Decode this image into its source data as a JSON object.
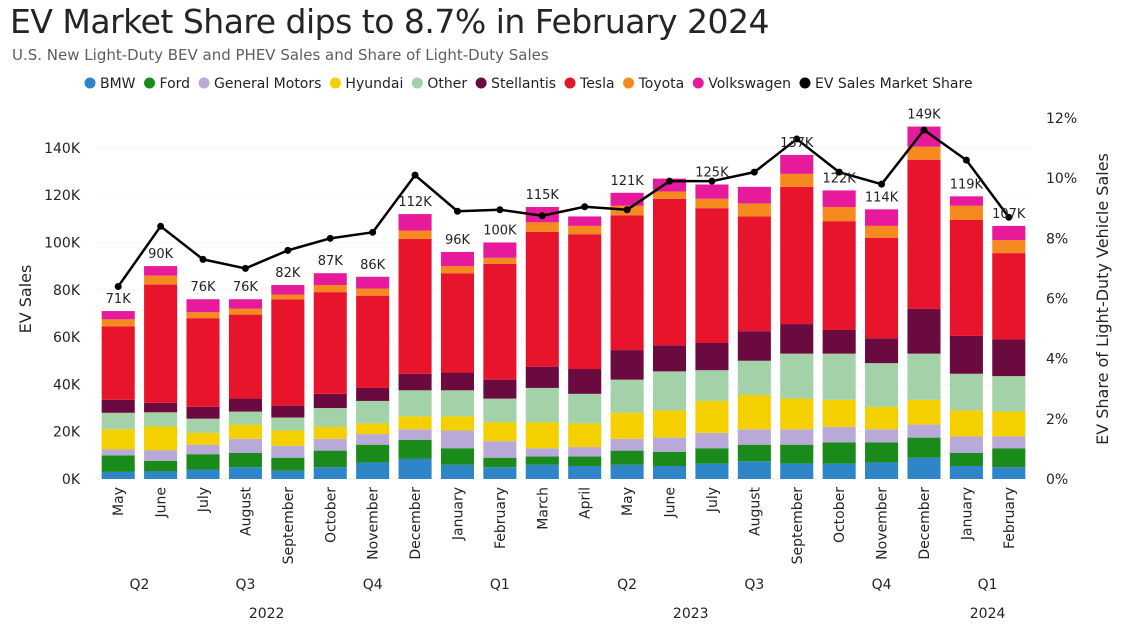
{
  "title": "EV Market Share dips to 8.7% in February 2024",
  "subtitle": "U.S. New Light-Duty BEV and PHEV Sales and Share of Light-Duty Sales",
  "chart_data": {
    "type": "bar",
    "stacked": true,
    "categories": [
      "May",
      "June",
      "July",
      "August",
      "September",
      "October",
      "November",
      "December",
      "January",
      "February",
      "March",
      "April",
      "May",
      "June",
      "July",
      "August",
      "September",
      "October",
      "November",
      "December",
      "January",
      "February"
    ],
    "quarter_groups": [
      {
        "label": "Q2",
        "start": 0,
        "end": 1
      },
      {
        "label": "Q3",
        "start": 2,
        "end": 4
      },
      {
        "label": "Q4",
        "start": 5,
        "end": 7
      },
      {
        "label": "Q1",
        "start": 8,
        "end": 10
      },
      {
        "label": "Q2",
        "start": 11,
        "end": 13
      },
      {
        "label": "Q3",
        "start": 14,
        "end": 16
      },
      {
        "label": "Q4",
        "start": 17,
        "end": 19
      },
      {
        "label": "Q1",
        "start": 20,
        "end": 21
      }
    ],
    "year_groups": [
      {
        "label": "2022",
        "start": 0,
        "end": 7
      },
      {
        "label": "2023",
        "start": 8,
        "end": 19
      },
      {
        "label": "2024",
        "start": 20,
        "end": 21
      }
    ],
    "series": [
      {
        "name": "BMW",
        "color": "#2e86c9",
        "values": [
          3000,
          3200,
          4000,
          5000,
          3500,
          5000,
          7000,
          8500,
          6000,
          5000,
          6000,
          5500,
          6000,
          5500,
          6500,
          7500,
          6500,
          6500,
          7000,
          9000,
          5500,
          5000
        ]
      },
      {
        "name": "Ford",
        "color": "#1a8a1a",
        "values": [
          7000,
          4500,
          6500,
          6000,
          5500,
          7000,
          7500,
          8000,
          7000,
          4000,
          3500,
          4000,
          6000,
          6000,
          6500,
          7000,
          8000,
          9000,
          8500,
          8500,
          5500,
          8000
        ]
      },
      {
        "name": "General Motors",
        "color": "#b8a9d9",
        "values": [
          2500,
          4500,
          4000,
          6000,
          5000,
          5000,
          4500,
          4500,
          7500,
          7000,
          3500,
          4000,
          5000,
          6000,
          6500,
          6500,
          6500,
          6500,
          5500,
          5500,
          7000,
          5000
        ]
      },
      {
        "name": "Hyundai",
        "color": "#f5d000",
        "values": [
          8500,
          10000,
          5000,
          6000,
          6500,
          5000,
          4500,
          5500,
          6000,
          8000,
          11000,
          10000,
          11000,
          11500,
          13500,
          14500,
          13000,
          11500,
          9500,
          10500,
          11000,
          10500
        ]
      },
      {
        "name": "Other",
        "color": "#a3d1a8",
        "values": [
          7000,
          6000,
          6000,
          5500,
          5500,
          8000,
          9500,
          11000,
          11000,
          10000,
          14500,
          12500,
          14000,
          16500,
          13000,
          14500,
          19000,
          19500,
          18500,
          19500,
          15500,
          15000
        ]
      },
      {
        "name": "Stellantis",
        "color": "#6b0a3e",
        "values": [
          5500,
          4000,
          5000,
          5500,
          5000,
          6000,
          5500,
          7000,
          7500,
          8000,
          9000,
          10500,
          12500,
          11000,
          11500,
          12500,
          12500,
          10000,
          10500,
          19000,
          16000,
          15500
        ]
      },
      {
        "name": "Tesla",
        "color": "#e8142c",
        "values": [
          31000,
          50000,
          37500,
          35500,
          45000,
          43000,
          39000,
          57000,
          42000,
          49000,
          57000,
          57000,
          57000,
          62000,
          57000,
          48500,
          58000,
          46000,
          42500,
          63000,
          49000,
          36500
        ]
      },
      {
        "name": "Toyota",
        "color": "#f78a1e",
        "values": [
          3000,
          3800,
          2500,
          2500,
          2000,
          3000,
          3000,
          3500,
          3000,
          2500,
          4000,
          3500,
          4000,
          3000,
          4000,
          5500,
          5500,
          6000,
          5000,
          5500,
          6000,
          5500
        ]
      },
      {
        "name": "Volkswagen",
        "color": "#e61a9a",
        "values": [
          3500,
          4000,
          5500,
          4000,
          4000,
          5000,
          5000,
          7000,
          6000,
          6500,
          6500,
          4000,
          5500,
          5500,
          6000,
          7000,
          8000,
          7000,
          7000,
          8500,
          4000,
          6000
        ]
      }
    ],
    "totals_labels": [
      "71K",
      "90K",
      "76K",
      "76K",
      "82K",
      "87K",
      "86K",
      "112K",
      "96K",
      "100K",
      "115K",
      "",
      "121K",
      "",
      "125K",
      "",
      "137K",
      "122K",
      "114K",
      "149K",
      "119K",
      "107K"
    ],
    "line_series": {
      "name": "EV Sales Market Share",
      "color": "#000000",
      "values": [
        6.4,
        8.4,
        7.3,
        7.0,
        7.6,
        8.0,
        8.2,
        10.1,
        8.9,
        8.95,
        8.75,
        9.05,
        8.95,
        9.9,
        9.9,
        10.2,
        11.3,
        10.2,
        9.8,
        11.6,
        10.6,
        8.7
      ]
    },
    "legend": [
      "BMW",
      "Ford",
      "General Motors",
      "Hyundai",
      "Other",
      "Stellantis",
      "Tesla",
      "Toyota",
      "Volkswagen",
      "EV Sales Market Share"
    ],
    "legend_position": "top",
    "ylabel": "EV Sales",
    "y2label": "EV Share of Light-Duty Vehicle Sales",
    "yticks": [
      "0K",
      "20K",
      "40K",
      "60K",
      "80K",
      "100K",
      "120K",
      "140K"
    ],
    "y2ticks": [
      "0%",
      "2%",
      "4%",
      "6%",
      "8%",
      "10%",
      "12%"
    ],
    "ylim": [
      0,
      156000
    ],
    "y2lim": [
      0,
      12
    ],
    "grid": true
  }
}
